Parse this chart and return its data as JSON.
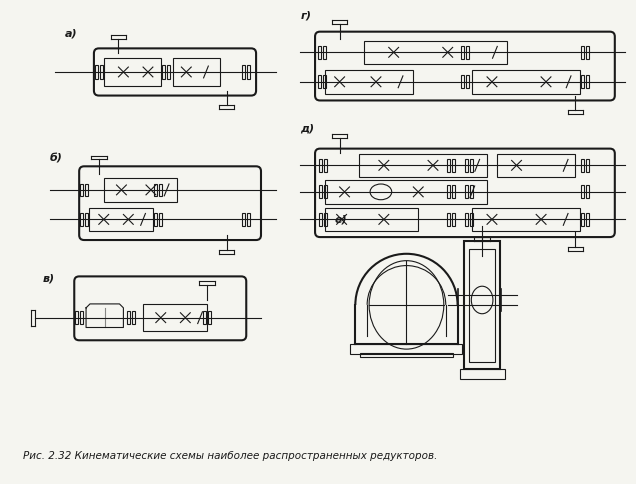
{
  "bg_color": "#f5f5f0",
  "line_color": "#1a1a1a",
  "labels": [
    "a)",
    "б)",
    "в)",
    "г)",
    "д)",
    "е)"
  ],
  "caption": "Рис. 2.32 Кинематические схемы наиболее распространенных редукторов."
}
